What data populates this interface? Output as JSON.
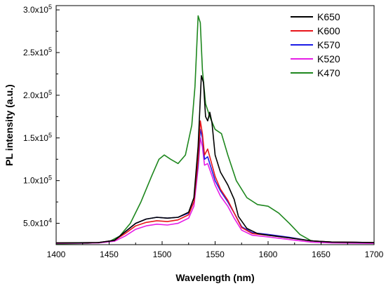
{
  "chart_data": {
    "type": "line",
    "xlabel": "Wavelength (nm)",
    "ylabel": "PL intensity (a.u.)",
    "xlim": [
      1400,
      1700
    ],
    "ylim": [
      25000,
      305000
    ],
    "x_ticks": [
      {
        "value": 1400,
        "label": "1400"
      },
      {
        "value": 1450,
        "label": "1450"
      },
      {
        "value": 1500,
        "label": "1500"
      },
      {
        "value": 1550,
        "label": "1550"
      },
      {
        "value": 1600,
        "label": "1600"
      },
      {
        "value": 1650,
        "label": "1650"
      },
      {
        "value": 1700,
        "label": "1700"
      }
    ],
    "y_ticks": [
      {
        "value": 50000,
        "mantissa": "5.0x10",
        "exp": "4"
      },
      {
        "value": 100000,
        "mantissa": "1.0x10",
        "exp": "5"
      },
      {
        "value": 150000,
        "mantissa": "1.5x10",
        "exp": "5"
      },
      {
        "value": 200000,
        "mantissa": "2.0x10",
        "exp": "5"
      },
      {
        "value": 250000,
        "mantissa": "2.5x10",
        "exp": "5"
      },
      {
        "value": 300000,
        "mantissa": "3.0x10",
        "exp": "5"
      }
    ],
    "grid": false,
    "legend_position": "top-right",
    "series": [
      {
        "name": "K650",
        "color": "#000000",
        "points": [
          [
            1400,
            27000
          ],
          [
            1440,
            27500
          ],
          [
            1455,
            30000
          ],
          [
            1465,
            40000
          ],
          [
            1475,
            50000
          ],
          [
            1485,
            55000
          ],
          [
            1495,
            57000
          ],
          [
            1505,
            56000
          ],
          [
            1515,
            57000
          ],
          [
            1525,
            63000
          ],
          [
            1530,
            80000
          ],
          [
            1534,
            140000
          ],
          [
            1537,
            223000
          ],
          [
            1539,
            215000
          ],
          [
            1541,
            175000
          ],
          [
            1543,
            170000
          ],
          [
            1545,
            180000
          ],
          [
            1547,
            168000
          ],
          [
            1550,
            130000
          ],
          [
            1555,
            110000
          ],
          [
            1562,
            95000
          ],
          [
            1568,
            78000
          ],
          [
            1572,
            58000
          ],
          [
            1580,
            44000
          ],
          [
            1590,
            38000
          ],
          [
            1600,
            36000
          ],
          [
            1620,
            33000
          ],
          [
            1640,
            29500
          ],
          [
            1660,
            28000
          ],
          [
            1700,
            27500
          ]
        ]
      },
      {
        "name": "K600",
        "color": "#e8151b",
        "points": [
          [
            1400,
            27000
          ],
          [
            1440,
            27500
          ],
          [
            1455,
            30000
          ],
          [
            1465,
            38000
          ],
          [
            1475,
            47000
          ],
          [
            1485,
            51000
          ],
          [
            1495,
            53000
          ],
          [
            1505,
            52000
          ],
          [
            1515,
            54000
          ],
          [
            1525,
            60000
          ],
          [
            1530,
            75000
          ],
          [
            1534,
            125000
          ],
          [
            1536,
            170000
          ],
          [
            1538,
            155000
          ],
          [
            1540,
            130000
          ],
          [
            1543,
            137000
          ],
          [
            1545,
            128000
          ],
          [
            1550,
            105000
          ],
          [
            1555,
            90000
          ],
          [
            1562,
            77000
          ],
          [
            1568,
            62000
          ],
          [
            1575,
            45000
          ],
          [
            1585,
            38000
          ],
          [
            1600,
            36000
          ],
          [
            1620,
            33000
          ],
          [
            1640,
            29500
          ],
          [
            1660,
            28000
          ],
          [
            1700,
            27500
          ]
        ]
      },
      {
        "name": "K570",
        "color": "#1c1ce6",
        "points": [
          [
            1400,
            27000
          ],
          [
            1440,
            27500
          ],
          [
            1455,
            30000
          ],
          [
            1465,
            40000
          ],
          [
            1475,
            50000
          ],
          [
            1485,
            55000
          ],
          [
            1495,
            57000
          ],
          [
            1505,
            56000
          ],
          [
            1515,
            57000
          ],
          [
            1525,
            62000
          ],
          [
            1530,
            75000
          ],
          [
            1534,
            120000
          ],
          [
            1536,
            160000
          ],
          [
            1538,
            150000
          ],
          [
            1540,
            125000
          ],
          [
            1543,
            128000
          ],
          [
            1545,
            120000
          ],
          [
            1550,
            100000
          ],
          [
            1555,
            88000
          ],
          [
            1562,
            75000
          ],
          [
            1568,
            62000
          ],
          [
            1575,
            46000
          ],
          [
            1585,
            39000
          ],
          [
            1600,
            37000
          ],
          [
            1620,
            33500
          ],
          [
            1640,
            29500
          ],
          [
            1660,
            28000
          ],
          [
            1700,
            27500
          ]
        ]
      },
      {
        "name": "K520",
        "color": "#e61ee6",
        "points": [
          [
            1400,
            26500
          ],
          [
            1440,
            27000
          ],
          [
            1455,
            29000
          ],
          [
            1465,
            35000
          ],
          [
            1475,
            43000
          ],
          [
            1485,
            47000
          ],
          [
            1495,
            49000
          ],
          [
            1505,
            48000
          ],
          [
            1515,
            50000
          ],
          [
            1525,
            56000
          ],
          [
            1530,
            70000
          ],
          [
            1534,
            115000
          ],
          [
            1536,
            150000
          ],
          [
            1538,
            140000
          ],
          [
            1540,
            118000
          ],
          [
            1543,
            120000
          ],
          [
            1545,
            113000
          ],
          [
            1550,
            95000
          ],
          [
            1555,
            82000
          ],
          [
            1562,
            70000
          ],
          [
            1568,
            56000
          ],
          [
            1575,
            42000
          ],
          [
            1585,
            36000
          ],
          [
            1600,
            34000
          ],
          [
            1620,
            31000
          ],
          [
            1640,
            28000
          ],
          [
            1660,
            27000
          ],
          [
            1700,
            26500
          ]
        ]
      },
      {
        "name": "K470",
        "color": "#1e871e",
        "points": [
          [
            1400,
            26000
          ],
          [
            1430,
            26500
          ],
          [
            1450,
            28500
          ],
          [
            1460,
            35000
          ],
          [
            1470,
            50000
          ],
          [
            1480,
            75000
          ],
          [
            1490,
            105000
          ],
          [
            1497,
            125000
          ],
          [
            1502,
            130000
          ],
          [
            1508,
            125000
          ],
          [
            1515,
            120000
          ],
          [
            1522,
            130000
          ],
          [
            1528,
            165000
          ],
          [
            1531,
            210000
          ],
          [
            1534,
            293000
          ],
          [
            1536,
            285000
          ],
          [
            1538,
            230000
          ],
          [
            1541,
            190000
          ],
          [
            1545,
            175000
          ],
          [
            1550,
            160000
          ],
          [
            1556,
            155000
          ],
          [
            1562,
            130000
          ],
          [
            1570,
            100000
          ],
          [
            1580,
            80000
          ],
          [
            1590,
            72000
          ],
          [
            1600,
            70000
          ],
          [
            1610,
            62000
          ],
          [
            1620,
            50000
          ],
          [
            1630,
            37000
          ],
          [
            1640,
            30000
          ],
          [
            1650,
            27500
          ],
          [
            1700,
            27000
          ]
        ]
      }
    ]
  }
}
